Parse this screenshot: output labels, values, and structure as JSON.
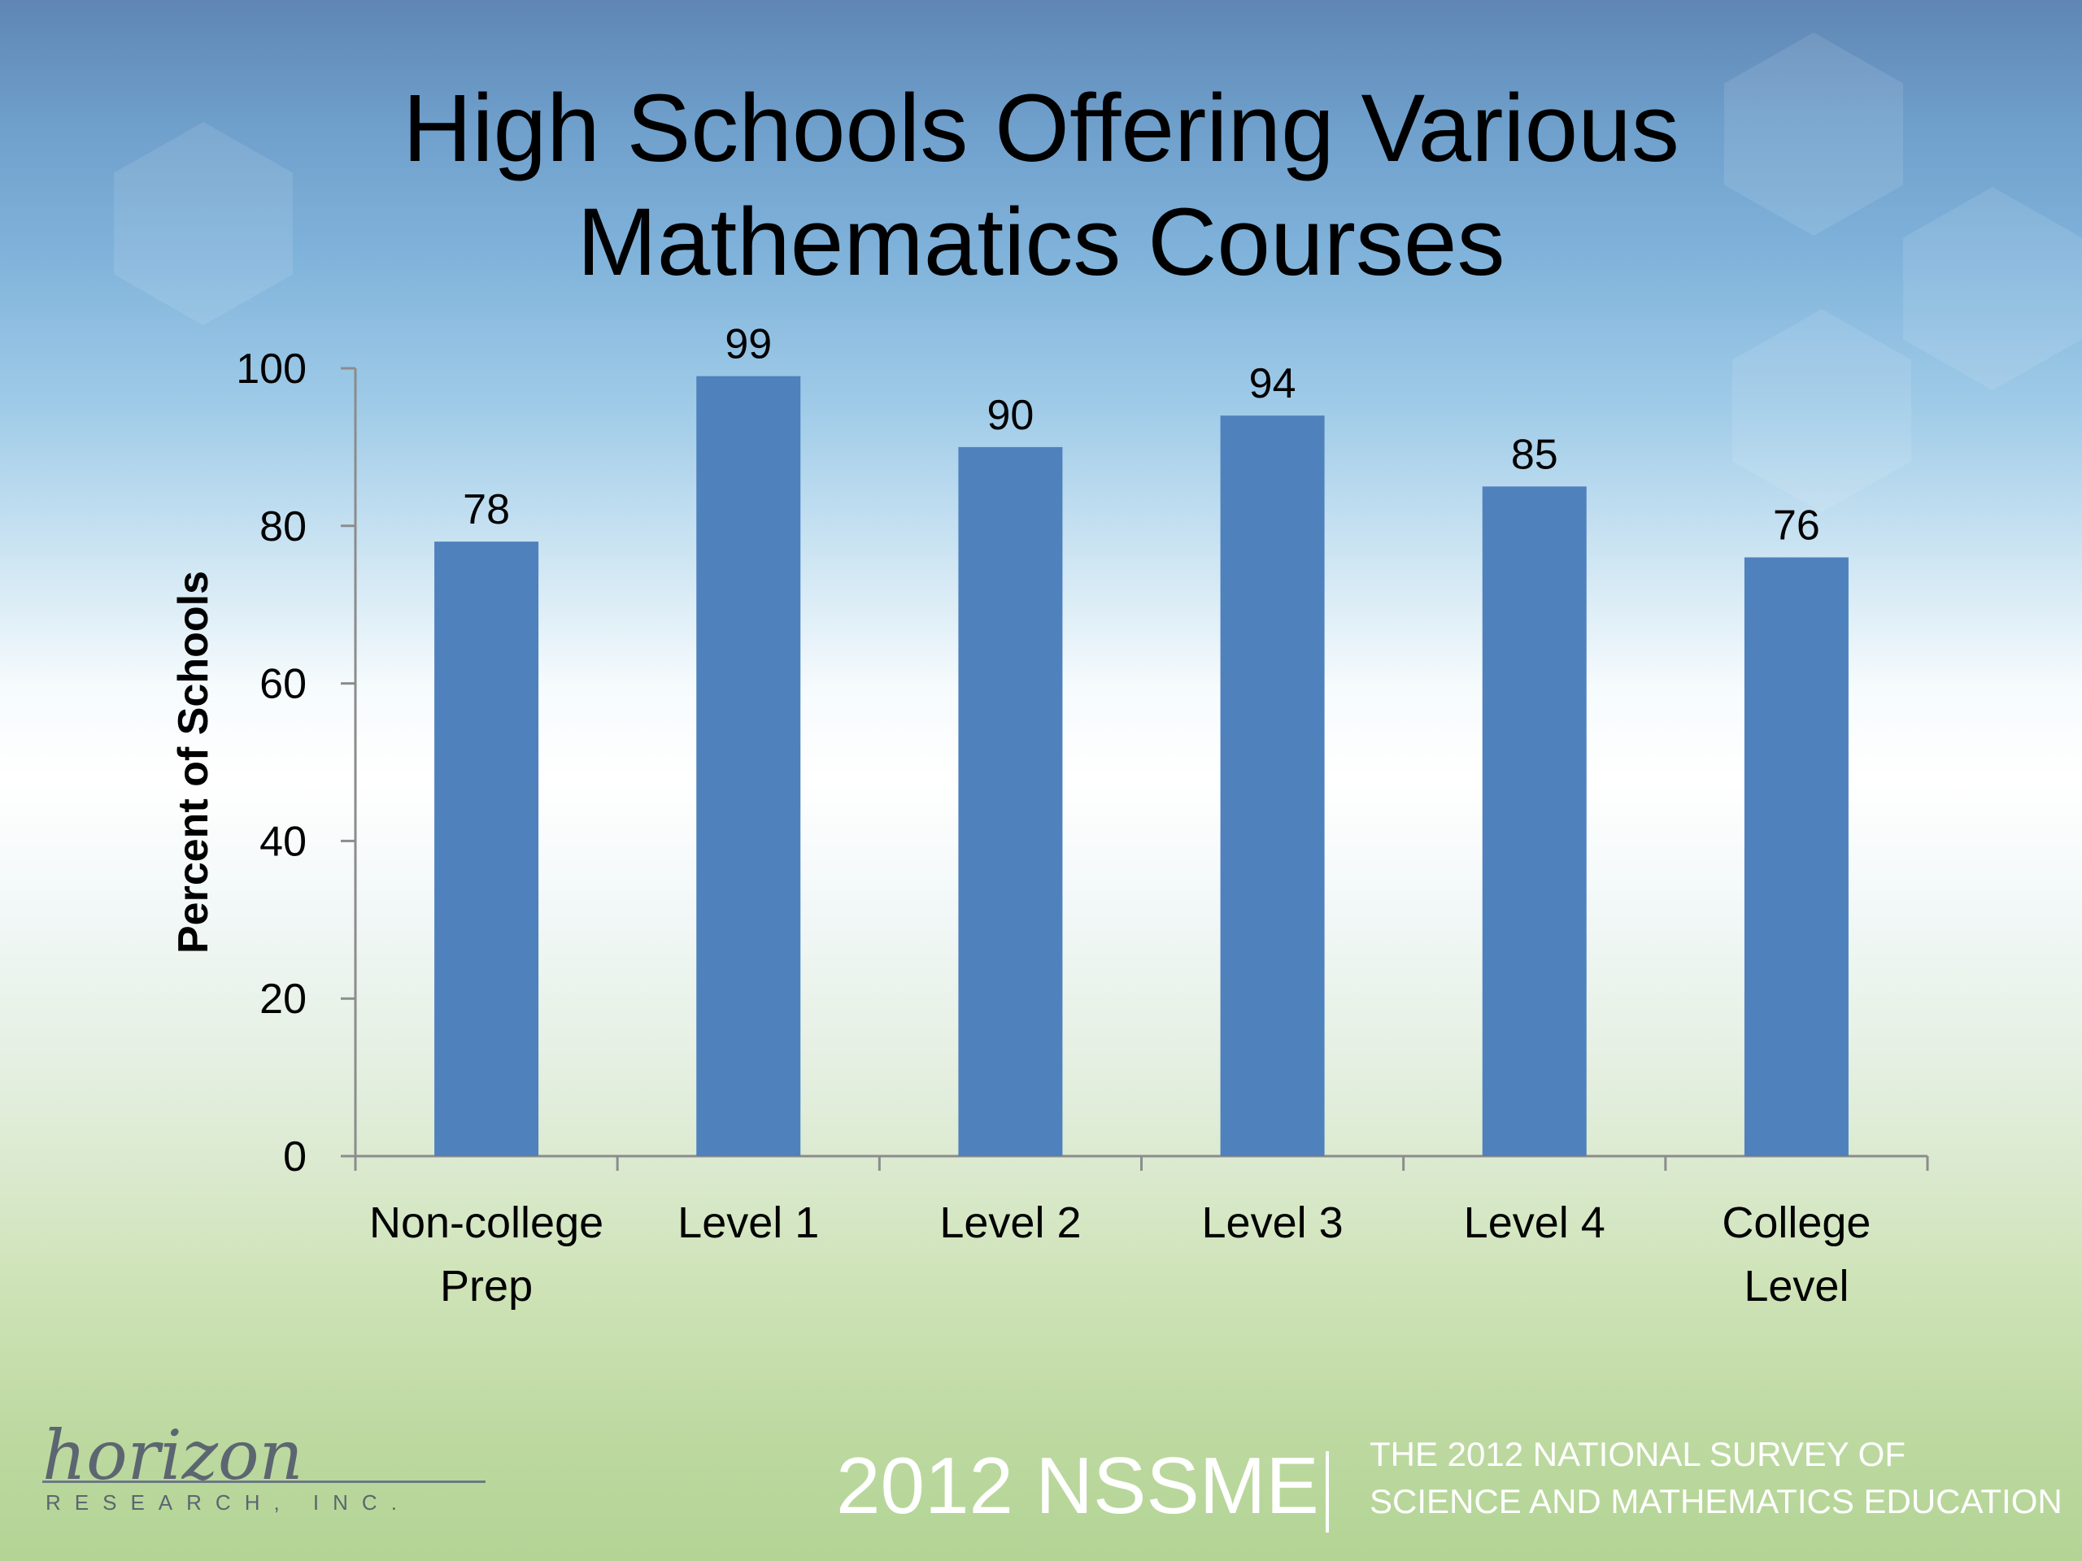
{
  "slide": {
    "title_lines": [
      "High Schools Offering Various",
      "Mathematics Courses"
    ],
    "footer": {
      "logo_text": "horizon",
      "logo_subtext": "RESEARCH, INC.",
      "event": "2012 NSSME",
      "subtitle_lines": [
        "THE 2012 NATIONAL SURVEY OF",
        "SCIENCE AND MATHEMATICS EDUCATION"
      ]
    }
  },
  "chart_data": {
    "type": "bar",
    "title": "High Schools Offering Various Mathematics Courses",
    "xlabel": "",
    "ylabel": "Percent of Schools",
    "ylim": [
      0,
      100
    ],
    "yticks": [
      0,
      20,
      40,
      60,
      80,
      100
    ],
    "categories": [
      [
        "Non-college",
        "Prep"
      ],
      [
        "Level 1"
      ],
      [
        "Level 2"
      ],
      [
        "Level 3"
      ],
      [
        "Level 4"
      ],
      [
        "College",
        "Level"
      ]
    ],
    "values": [
      78,
      99,
      90,
      94,
      85,
      76
    ],
    "data_labels": [
      "78",
      "99",
      "90",
      "94",
      "85",
      "76"
    ],
    "bar_color": "#4f81bd",
    "grid": false,
    "legend": "none"
  }
}
